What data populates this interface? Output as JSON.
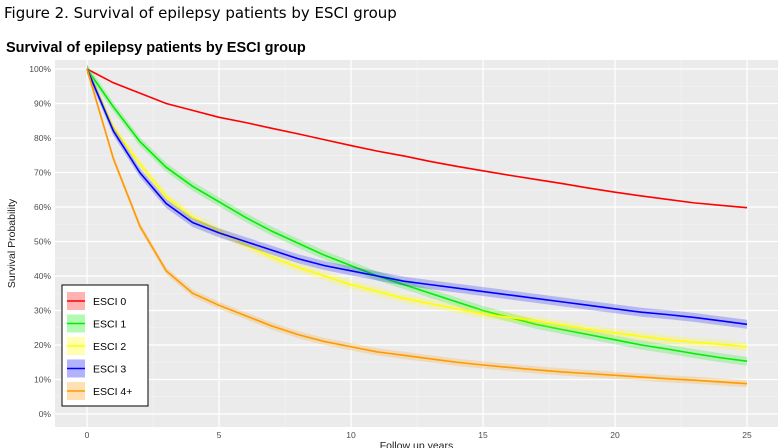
{
  "figure_caption": "Figure 2. Survival of epilepsy patients by ESCI group",
  "chart_data": {
    "type": "line",
    "title": "Survival of epilepsy patients by ESCI group",
    "xlabel": "Follow up years",
    "ylabel": "Survival Probability",
    "xlim": [
      -1.2,
      26.2
    ],
    "ylim": [
      0,
      100
    ],
    "xticks": [
      0,
      5,
      10,
      15,
      20,
      25
    ],
    "yticks": [
      "0%",
      "10%",
      "20%",
      "30%",
      "40%",
      "50%",
      "60%",
      "70%",
      "80%",
      "90%",
      "100%"
    ],
    "grid": true,
    "legend_position": "bottom-left",
    "confidence_bands": true,
    "x": [
      0,
      1,
      2,
      3,
      4,
      5,
      6,
      7,
      8,
      9,
      10,
      11,
      12,
      13,
      14,
      15,
      16,
      17,
      18,
      19,
      20,
      21,
      22,
      23,
      24,
      25
    ],
    "series": [
      {
        "name": "ESCI 0",
        "color": "#ff0000",
        "values": [
          100,
          96,
          93,
          90,
          88,
          86,
          84.5,
          82.8,
          81.2,
          79.5,
          77.8,
          76.2,
          74.8,
          73.2,
          71.8,
          70.5,
          69.2,
          68,
          66.8,
          65.5,
          64.3,
          63.2,
          62.2,
          61.2,
          60.5,
          59.8
        ]
      },
      {
        "name": "ESCI 1",
        "color": "#00ee00",
        "values": [
          100,
          89,
          79,
          71.5,
          66,
          61.5,
          57,
          53,
          49.5,
          46,
          43,
          40,
          37.5,
          35,
          32.5,
          30,
          28,
          26,
          24.5,
          23,
          21.5,
          20,
          18.8,
          17.5,
          16.3,
          15.3
        ]
      },
      {
        "name": "ESCI 2",
        "color": "#ffff00",
        "values": [
          100,
          83,
          72.5,
          63,
          57,
          53,
          49,
          45.5,
          42.5,
          40,
          37.5,
          35.5,
          33.5,
          32,
          30.5,
          29,
          28,
          27,
          25.8,
          24.5,
          23.5,
          22.5,
          21.5,
          20.8,
          20.2,
          19.5
        ]
      },
      {
        "name": "ESCI 3",
        "color": "#0000ff",
        "values": [
          100,
          82,
          70,
          61,
          55.5,
          52.5,
          50,
          47.5,
          45,
          43,
          41.5,
          40,
          38.5,
          37.5,
          36.5,
          35.5,
          34.5,
          33.5,
          32.5,
          31.5,
          30.5,
          29.5,
          28.8,
          28,
          27,
          26
        ]
      },
      {
        "name": "ESCI 4+",
        "color": "#ff9900",
        "values": [
          100,
          74,
          54.5,
          41.5,
          35,
          31.5,
          28.5,
          25.5,
          23,
          21,
          19.5,
          18,
          17,
          16,
          15,
          14.2,
          13.5,
          12.8,
          12.2,
          11.7,
          11.2,
          10.7,
          10.2,
          9.8,
          9.3,
          8.8
        ]
      }
    ]
  }
}
